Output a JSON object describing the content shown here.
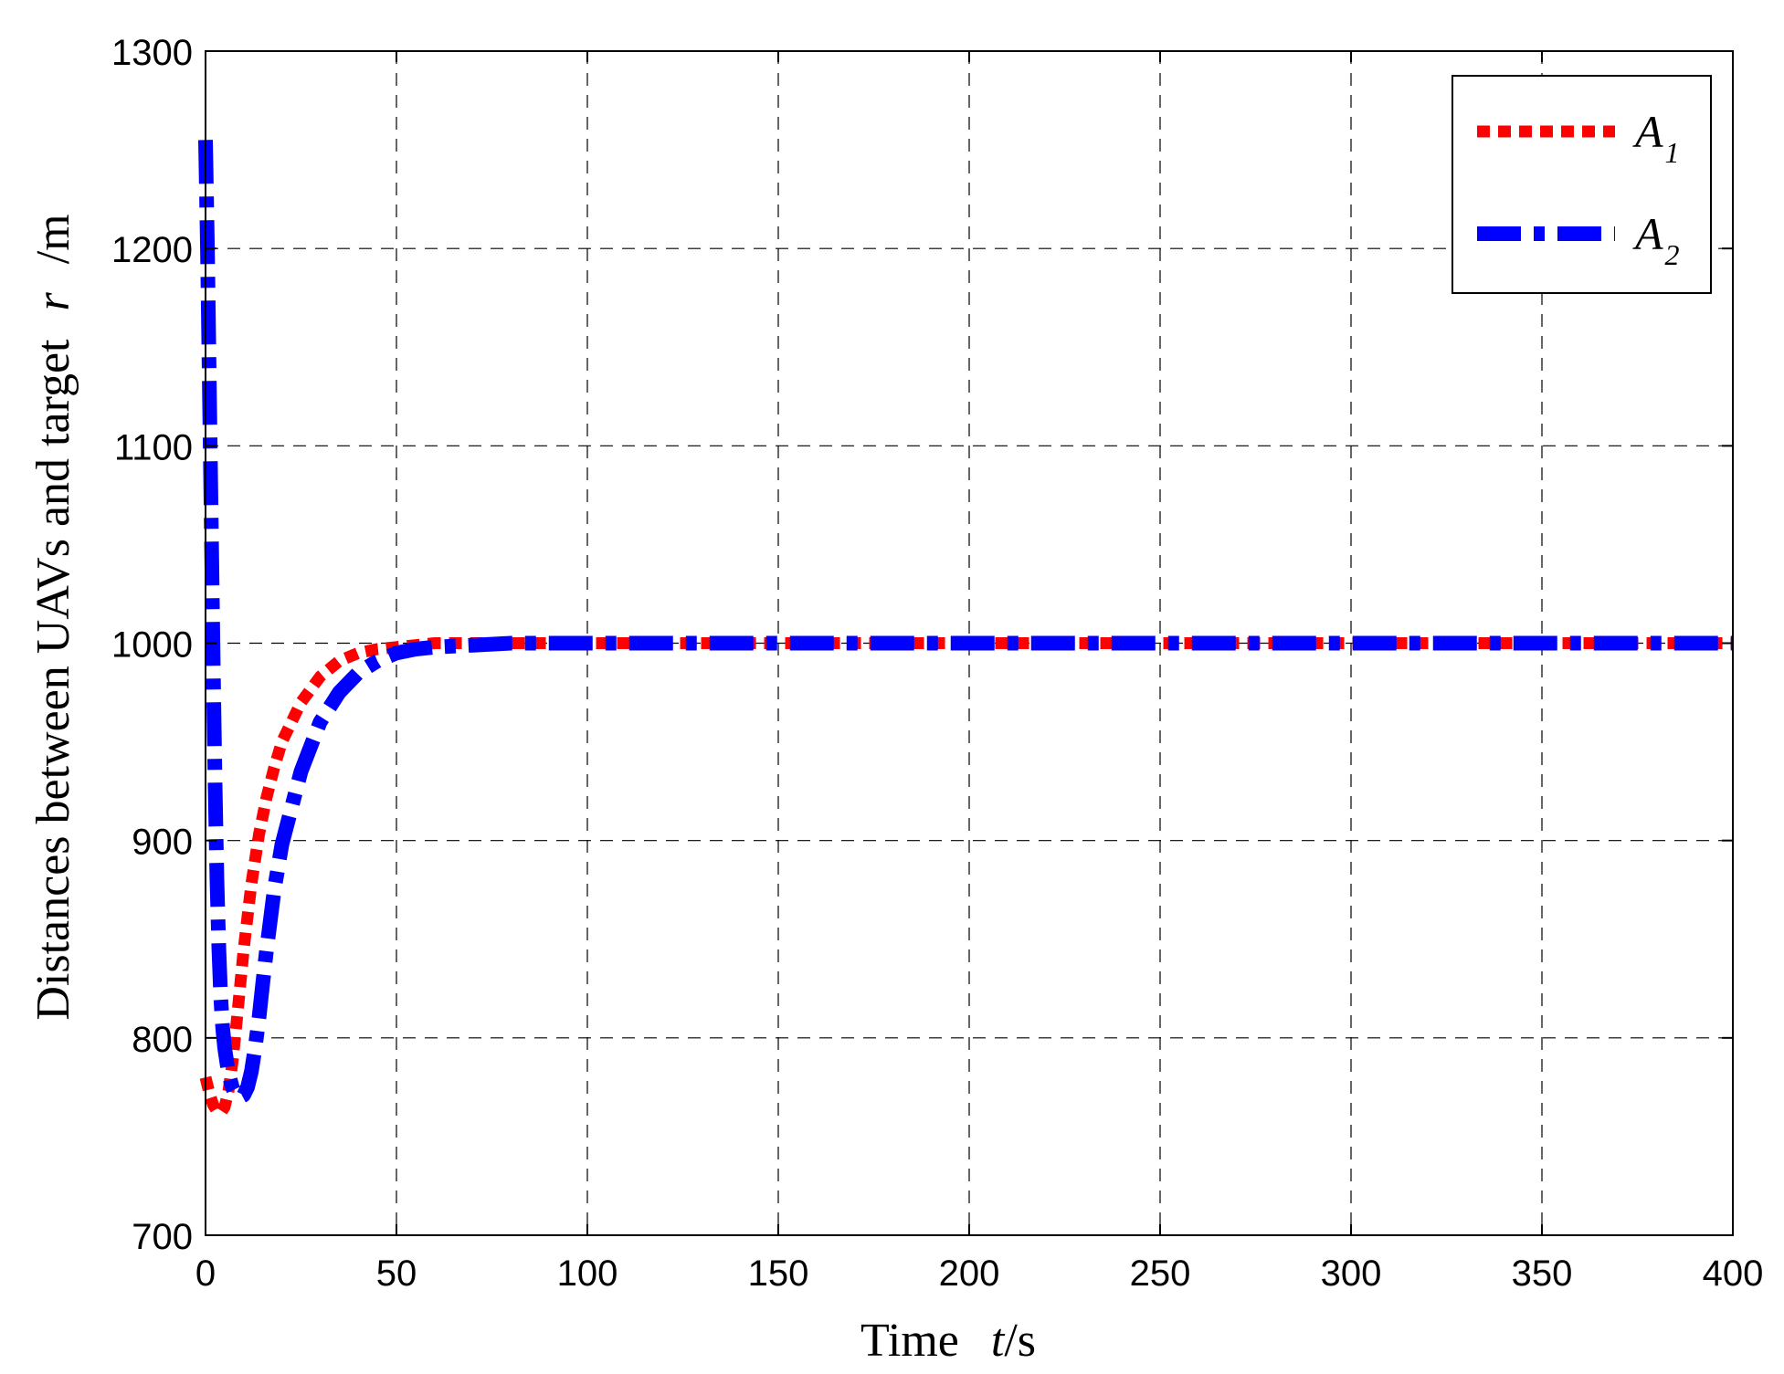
{
  "chart_data": {
    "type": "line",
    "title": "",
    "xlabel": "Time",
    "xlabel_symbol": "t",
    "xlabel_unit": "/s",
    "ylabel": "Distances between UAVs and target",
    "ylabel_symbol": "r",
    "ylabel_unit": "/m",
    "xlim": [
      0,
      400
    ],
    "ylim": [
      700,
      1300
    ],
    "x_ticks": [
      "0",
      "50",
      "100",
      "150",
      "200",
      "250",
      "300",
      "350",
      "400"
    ],
    "y_ticks": [
      "700",
      "800",
      "900",
      "1000",
      "1100",
      "1200",
      "1300"
    ],
    "grid": true,
    "legend_position": "top-right",
    "series": [
      {
        "name": "A",
        "subscript": "1",
        "color": "#ff0000",
        "style": "dotted",
        "x": [
          0,
          1,
          2,
          3,
          4,
          5,
          6,
          7,
          8,
          9,
          10,
          12,
          14,
          16,
          18,
          20,
          25,
          30,
          35,
          40,
          45,
          50,
          55,
          60,
          70,
          80,
          100,
          150,
          200,
          250,
          300,
          350,
          400
        ],
        "y": [
          780,
          772,
          766,
          763,
          762,
          765,
          773,
          787,
          805,
          825,
          845,
          878,
          903,
          922,
          937,
          950,
          970,
          983,
          991,
          995,
          997,
          998,
          999,
          1000,
          1000,
          1000,
          1000,
          1000,
          1000,
          1000,
          1000,
          1000,
          1000
        ]
      },
      {
        "name": "A",
        "subscript": "2",
        "color": "#0000ff",
        "style": "dash-dot",
        "x": [
          0,
          0.5,
          1,
          1.5,
          2,
          2.5,
          3,
          3.5,
          4,
          4.5,
          5,
          6,
          7,
          8,
          9,
          10,
          11,
          12,
          13,
          14,
          15,
          16,
          18,
          20,
          25,
          30,
          35,
          40,
          45,
          50,
          55,
          60,
          70,
          80,
          100,
          150,
          200,
          250,
          300,
          350,
          400
        ],
        "y": [
          1255,
          1200,
          1130,
          1060,
          990,
          930,
          880,
          845,
          820,
          805,
          795,
          782,
          775,
          771,
          770,
          771,
          775,
          783,
          795,
          810,
          828,
          845,
          875,
          898,
          935,
          960,
          975,
          985,
          991,
          995,
          997,
          998,
          999,
          1000,
          1000,
          1000,
          1000,
          1000,
          1000,
          1000,
          1000
        ]
      }
    ]
  }
}
